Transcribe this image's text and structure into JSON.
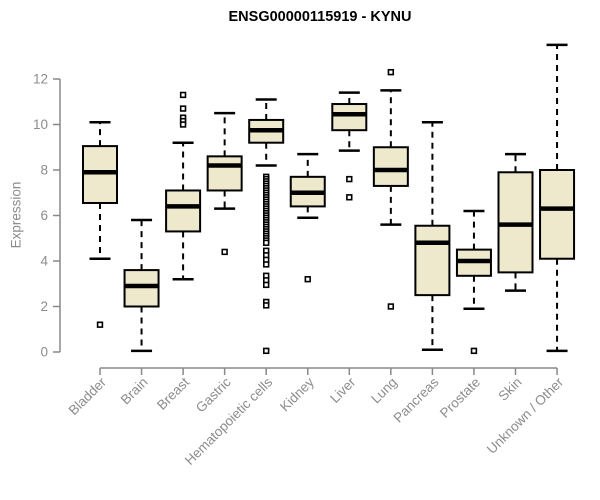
{
  "figure": {
    "title": "ENSG00000115919 - KYNU"
  },
  "colors": {
    "background": "#FFFFFF",
    "box_fill": "#EEE8CD",
    "box_stroke": "#000000",
    "median": "#000000",
    "whisker": "#000000",
    "outlier_fill": "#FFFFFF",
    "axis_line": "#888888",
    "axis_text": "#8C8C8C",
    "title_text": "#000000"
  },
  "chart_data": {
    "type": "boxplot",
    "title": "ENSG00000115919 - KYNU",
    "xlabel": "",
    "ylabel": "Expression",
    "ylim": [
      0,
      13.6
    ],
    "yticks": [
      0,
      2,
      4,
      6,
      8,
      10,
      12
    ],
    "grid": false,
    "legend": "none",
    "x_label_rotation_deg": 45,
    "categories": [
      "Bladder",
      "Brain",
      "Breast",
      "Gastric",
      "Hematopoietic cells",
      "Kidney",
      "Liver",
      "Lung",
      "Pancreas",
      "Prostate",
      "Skin",
      "Unknown / Other"
    ],
    "boxes": [
      {
        "label": "Bladder",
        "whislo": 4.1,
        "q1": 6.55,
        "med": 7.9,
        "q3": 9.05,
        "whishi": 10.1,
        "outliers": [
          1.2
        ]
      },
      {
        "label": "Brain",
        "whislo": 0.05,
        "q1": 2.0,
        "med": 2.9,
        "q3": 3.6,
        "whishi": 5.8,
        "outliers": []
      },
      {
        "label": "Breast",
        "whislo": 3.2,
        "q1": 5.3,
        "med": 6.4,
        "q3": 7.1,
        "whishi": 9.2,
        "outliers": [
          11.3,
          10.7,
          10.3,
          10.15,
          10.0
        ]
      },
      {
        "label": "Gastric",
        "whislo": 6.3,
        "q1": 7.1,
        "med": 8.2,
        "q3": 8.6,
        "whishi": 10.5,
        "outliers": [
          4.4
        ]
      },
      {
        "label": "Hematopoietic cells",
        "whislo": 8.2,
        "q1": 9.2,
        "med": 9.75,
        "q3": 10.2,
        "whishi": 11.1,
        "outliers": [
          7.7,
          7.6,
          7.5,
          7.4,
          7.3,
          7.2,
          7.1,
          7.0,
          6.9,
          6.8,
          6.7,
          6.6,
          6.5,
          6.4,
          6.3,
          6.2,
          6.1,
          6.0,
          5.9,
          5.8,
          5.7,
          5.6,
          5.5,
          5.4,
          5.3,
          5.2,
          5.1,
          5.0,
          4.9,
          4.8,
          4.45,
          4.25,
          4.05,
          3.85,
          3.35,
          3.15,
          2.95,
          2.2,
          2.05,
          0.05
        ]
      },
      {
        "label": "Kidney",
        "whislo": 5.9,
        "q1": 6.4,
        "med": 7.0,
        "q3": 7.7,
        "whishi": 8.7,
        "outliers": [
          3.2
        ]
      },
      {
        "label": "Liver",
        "whislo": 8.85,
        "q1": 9.75,
        "med": 10.45,
        "q3": 10.9,
        "whishi": 11.4,
        "outliers": [
          7.6,
          6.8
        ]
      },
      {
        "label": "Lung",
        "whislo": 5.6,
        "q1": 7.3,
        "med": 8.0,
        "q3": 9.0,
        "whishi": 11.5,
        "outliers": [
          12.3,
          2.0
        ]
      },
      {
        "label": "Pancreas",
        "whislo": 0.1,
        "q1": 2.5,
        "med": 4.8,
        "q3": 5.55,
        "whishi": 10.1,
        "outliers": []
      },
      {
        "label": "Prostate",
        "whislo": 1.9,
        "q1": 3.35,
        "med": 4.0,
        "q3": 4.5,
        "whishi": 6.2,
        "outliers": [
          0.05
        ]
      },
      {
        "label": "Skin",
        "whislo": 2.7,
        "q1": 3.5,
        "med": 5.6,
        "q3": 7.9,
        "whishi": 8.7,
        "outliers": []
      },
      {
        "label": "Unknown / Other",
        "whislo": 0.05,
        "q1": 4.1,
        "med": 6.3,
        "q3": 8.0,
        "whishi": 13.5,
        "outliers": []
      }
    ]
  }
}
